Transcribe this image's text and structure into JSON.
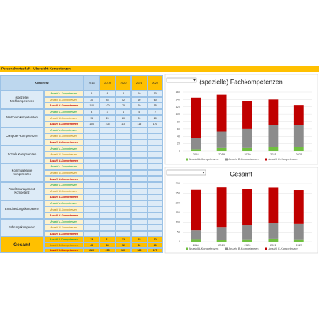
{
  "sheet_title": "Personalwirtschaft - Übersicht Kompetenzen",
  "table": {
    "header": {
      "label": "Kompetenz",
      "years": [
        "2018",
        "2019",
        "2020",
        "2021",
        "2022"
      ]
    },
    "groups": [
      {
        "label": "(spezielle) Fachkompetenzen",
        "rows": [
          {
            "label": "Anzahl A-Kompetenzen",
            "values": [
              5,
              8,
              8,
              10,
              10
            ]
          },
          {
            "label": "Anzahl B-Kompetenzen",
            "values": [
              30,
              45,
              52,
              60,
              60
            ]
          },
          {
            "label": "Anzahl C-Kompetenzen",
            "values": [
              110,
              100,
              75,
              70,
              55
            ]
          }
        ]
      },
      {
        "label": "Methodenkompetenzen",
        "rows": [
          {
            "label": "Anzahl A-Kompetenzen",
            "values": [
              8,
              3,
              4,
              5,
              2
            ]
          },
          {
            "label": "Anzahl B-Kompetenzen",
            "values": [
              15,
              20,
              20,
              20,
              20
            ]
          },
          {
            "label": "Anzahl C-Kompetenzen",
            "values": [
              100,
              105,
              115,
              115,
              120
            ]
          }
        ]
      },
      {
        "label": "Computer-Kompetenzen",
        "rows": [
          {
            "label": "Anzahl A-Kompetenzen"
          },
          {
            "label": "Anzahl B-Kompetenzen"
          },
          {
            "label": "Anzahl C-Kompetenzen"
          }
        ]
      },
      {
        "label": "Soziale Kompetenzen",
        "rows": [
          {
            "label": "Anzahl A-Kompetenzen"
          },
          {
            "label": "Anzahl B-Kompetenzen"
          },
          {
            "label": "Anzahl C-Kompetenzen"
          }
        ]
      },
      {
        "label": "Kommunikative Kompetenzen",
        "rows": [
          {
            "label": "Anzahl A-Kompetenzen"
          },
          {
            "label": "Anzahl B-Kompetenzen"
          },
          {
            "label": "Anzahl C-Kompetenzen"
          }
        ]
      },
      {
        "label": "Projektmanagement-Kompetenz",
        "rows": [
          {
            "label": "Anzahl A-Kompetenzen"
          },
          {
            "label": "Anzahl B-Kompetenzen"
          },
          {
            "label": "Anzahl C-Kompetenzen"
          }
        ]
      },
      {
        "label": "Entscheidungskompetenz",
        "rows": [
          {
            "label": "Anzahl A-Kompetenzen"
          },
          {
            "label": "Anzahl B-Kompetenzen"
          },
          {
            "label": "Anzahl C-Kompetenzen"
          }
        ]
      },
      {
        "label": "Führungskompetenz",
        "rows": [
          {
            "label": "Anzahl A-Kompetenzen"
          },
          {
            "label": "Anzahl B-Kompetenzen"
          },
          {
            "label": "Anzahl C-Kompetenzen"
          }
        ]
      }
    ],
    "total": {
      "label": "Gesamt",
      "rows": [
        {
          "label": "Anzahl A-Kompetenzen",
          "values": [
            13,
            11,
            12,
            15,
            12
          ]
        },
        {
          "label": "Anzahl B-Kompetenzen",
          "values": [
            45,
            65,
            72,
            80,
            80
          ]
        },
        {
          "label": "Anzahl C-Kompetenzen",
          "values": [
            210,
            205,
            190,
            185,
            175
          ]
        }
      ]
    }
  },
  "chart_data": [
    {
      "type": "bar",
      "stacked": true,
      "title": "(spezielle) Fachkompetenzen",
      "categories": [
        "2018",
        "2019",
        "2020",
        "2021",
        "2022"
      ],
      "series": [
        {
          "name": "Anzahl A-Kompetenzen",
          "color": "#70c040",
          "values": [
            5,
            8,
            8,
            10,
            10
          ]
        },
        {
          "name": "Anzahl B-Kompetenzen",
          "color": "#8c8c8c",
          "values": [
            30,
            45,
            52,
            60,
            60
          ]
        },
        {
          "name": "Anzahl C-Kompetenzen",
          "color": "#c00000",
          "values": [
            110,
            100,
            75,
            70,
            55
          ]
        }
      ],
      "ylim": [
        0,
        160
      ],
      "yticks": [
        0,
        20,
        40,
        60,
        80,
        100,
        120,
        140,
        160
      ],
      "grid": true,
      "legend": "bottom"
    },
    {
      "type": "bar",
      "stacked": true,
      "title": "Gesamt",
      "categories": [
        "2018",
        "2019",
        "2020",
        "2021",
        "2022"
      ],
      "series": [
        {
          "name": "Anzahl A-Kompetenzen",
          "color": "#70c040",
          "values": [
            13,
            11,
            12,
            15,
            12
          ]
        },
        {
          "name": "Anzahl B-Kompetenzen",
          "color": "#8c8c8c",
          "values": [
            45,
            65,
            72,
            80,
            80
          ]
        },
        {
          "name": "Anzahl C-Kompetenzen",
          "color": "#c00000",
          "values": [
            210,
            205,
            190,
            185,
            175
          ]
        }
      ],
      "ylim": [
        0,
        300
      ],
      "yticks": [
        0,
        50,
        100,
        150,
        200,
        250,
        300
      ],
      "grid": true,
      "legend": "bottom"
    }
  ]
}
